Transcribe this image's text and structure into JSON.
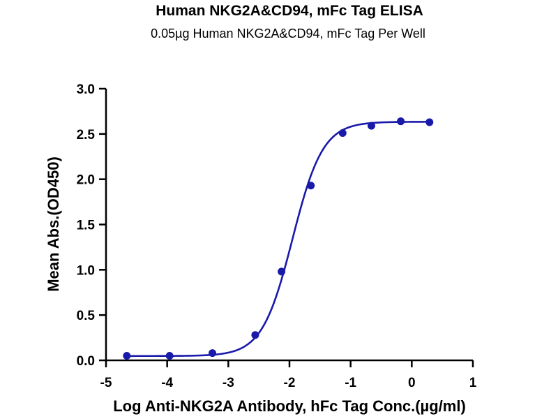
{
  "chart_data": {
    "type": "scatter",
    "title": "Human NKG2A&CD94, mFc Tag ELISA",
    "subtitle": "0.05µg Human NKG2A&CD94, mFc Tag Per Well",
    "xlabel": "Log Anti-NKG2A Antibody, hFc Tag Conc.(µg/ml)",
    "ylabel": "Mean Abs.(OD450)",
    "xlim": [
      -5,
      1
    ],
    "ylim": [
      0,
      3.0
    ],
    "x_ticks": [
      "-5",
      "-4",
      "-3",
      "-2",
      "-1",
      "0",
      "1"
    ],
    "y_ticks": [
      "0.0",
      "0.5",
      "1.0",
      "1.5",
      "2.0",
      "2.5",
      "3.0"
    ],
    "grid": false,
    "series": [
      {
        "points": [
          {
            "x": -4.66,
            "y": 0.05
          },
          {
            "x": -3.96,
            "y": 0.05
          },
          {
            "x": -3.26,
            "y": 0.08
          },
          {
            "x": -2.56,
            "y": 0.28
          },
          {
            "x": -2.13,
            "y": 0.98
          },
          {
            "x": -1.65,
            "y": 1.93
          },
          {
            "x": -1.13,
            "y": 2.51
          },
          {
            "x": -0.66,
            "y": 2.59
          },
          {
            "x": -0.18,
            "y": 2.64
          },
          {
            "x": 0.29,
            "y": 2.63
          }
        ],
        "fit": {
          "bottom": 0.048,
          "top": 2.635,
          "logEC50": -1.95,
          "hill": 1.75
        }
      }
    ],
    "color": "#1a1aaa"
  }
}
